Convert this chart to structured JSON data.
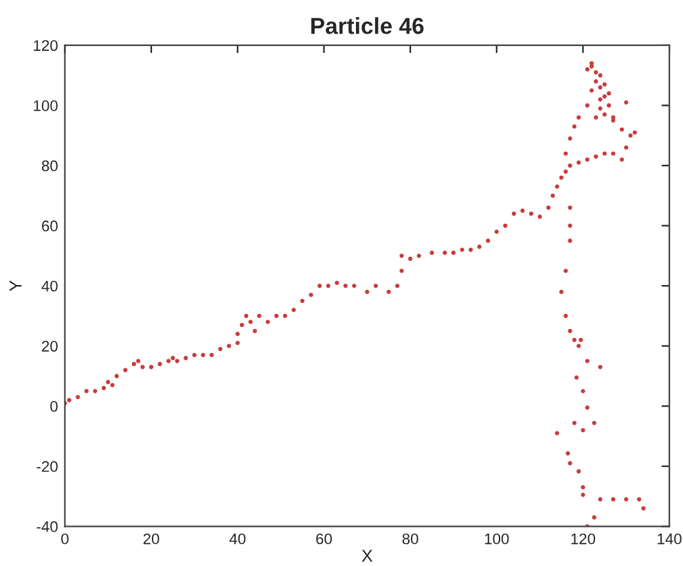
{
  "chart_data": {
    "type": "scatter",
    "title": "Particle 46",
    "xlabel": "X",
    "ylabel": "Y",
    "xlim": [
      0,
      140
    ],
    "ylim": [
      -40,
      120
    ],
    "xticks": [
      0,
      20,
      40,
      60,
      80,
      100,
      120,
      140
    ],
    "yticks": [
      -40,
      -20,
      0,
      20,
      40,
      60,
      80,
      100,
      120
    ],
    "grid": false,
    "marker": "circle",
    "series": [
      {
        "color": "#c83c3c",
        "x": [
          0,
          1,
          3,
          5,
          7,
          9,
          10,
          11,
          12,
          14,
          16,
          17,
          18,
          20,
          22,
          24,
          25,
          26,
          28,
          30,
          32,
          34,
          36,
          38,
          40,
          40,
          41,
          42,
          43,
          44,
          45,
          47,
          49,
          51,
          53,
          55,
          57,
          59,
          61,
          63,
          65,
          67,
          70,
          72,
          75,
          77,
          78,
          78,
          80,
          82,
          85,
          88,
          90,
          92,
          94,
          96,
          98,
          100,
          102,
          104,
          106,
          108,
          110,
          112,
          113,
          114,
          115,
          116,
          117,
          119,
          121,
          123,
          125,
          127,
          129,
          130,
          131,
          132,
          129,
          127,
          124,
          121,
          119,
          118,
          117,
          116,
          122,
          123,
          124,
          125,
          126,
          122,
          123,
          124,
          125,
          126,
          123,
          124,
          125,
          121,
          122,
          127,
          130,
          117,
          117,
          117,
          116,
          115,
          116,
          117,
          118,
          119,
          119.5,
          121,
          124,
          118.5,
          120,
          121,
          118,
          122.6,
          120,
          114,
          116.5,
          117,
          119,
          120,
          120,
          124,
          127,
          130,
          133,
          134,
          122.6,
          121
        ],
        "values": [
          1,
          2,
          3,
          5,
          5,
          6,
          8,
          7,
          10,
          12,
          14,
          15,
          13,
          13,
          14,
          15,
          16,
          15,
          16,
          17,
          17,
          17,
          19,
          20,
          21,
          24,
          27,
          30,
          28,
          25,
          30,
          28,
          30,
          30,
          32,
          35,
          37,
          40,
          40,
          41,
          40,
          40,
          38,
          40,
          38,
          40,
          45,
          50,
          49,
          50,
          51,
          51,
          51,
          52,
          52,
          53,
          55,
          58,
          60,
          64,
          65,
          64,
          63,
          66,
          70,
          73,
          76,
          78,
          80,
          81,
          82,
          83,
          84,
          84,
          82,
          86,
          90,
          91,
          92,
          96,
          99,
          100,
          96,
          93,
          89,
          84,
          105,
          108,
          110,
          107,
          104,
          113,
          111,
          102,
          97,
          100,
          96,
          106,
          103,
          112,
          114,
          95,
          101,
          66,
          60,
          55,
          45,
          38,
          30,
          25,
          22,
          20,
          22,
          15,
          13,
          9.5,
          5,
          -0.5,
          -5.6,
          -5.6,
          -8,
          -9,
          -15.7,
          -19,
          -21.7,
          -27,
          -29.5,
          -31,
          -31,
          -31,
          -31,
          -34,
          -37,
          -40
        ]
      }
    ]
  }
}
